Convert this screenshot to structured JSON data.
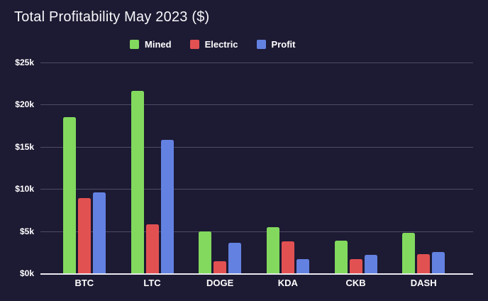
{
  "title": "Total Profitability May 2023 ($)",
  "legend": {
    "items": [
      {
        "label": "Mined",
        "color": "#82d95e"
      },
      {
        "label": "Electric",
        "color": "#e25152"
      },
      {
        "label": "Profit",
        "color": "#6381e1"
      }
    ]
  },
  "y_axis": {
    "tick_labels_top_down": [
      "$25k",
      "$20k",
      "$15k",
      "$10k",
      "$5k",
      "$0k"
    ]
  },
  "x_axis": {
    "labels": [
      "BTC",
      "LTC",
      "DOGE",
      "KDA",
      "CKB",
      "DASH"
    ]
  },
  "colors": {
    "background": "#1d1a33",
    "gridline": "#4f4b66",
    "axis_line": "#e9e9ef",
    "text": "#ffffff",
    "mined_green": "#82d95e",
    "electric_red": "#e25152",
    "profit_blue": "#6381e1"
  },
  "chart_data": {
    "type": "bar",
    "title": "Total Profitability May 2023 ($)",
    "categories": [
      "BTC",
      "LTC",
      "DOGE",
      "KDA",
      "CKB",
      "DASH"
    ],
    "series": [
      {
        "name": "Mined",
        "color": "#82d95e",
        "values": [
          18500,
          21600,
          5000,
          5500,
          3900,
          4800
        ]
      },
      {
        "name": "Electric",
        "color": "#e25152",
        "values": [
          8900,
          5800,
          1400,
          3800,
          1700,
          2300
        ]
      },
      {
        "name": "Profit",
        "color": "#6381e1",
        "values": [
          9600,
          15800,
          3600,
          1700,
          2200,
          2500
        ]
      }
    ],
    "xlabel": "",
    "ylabel": "",
    "ylim": [
      0,
      25000
    ],
    "y_ticks": [
      0,
      5000,
      10000,
      15000,
      20000,
      25000
    ],
    "grid": true,
    "legend_position": "top"
  }
}
